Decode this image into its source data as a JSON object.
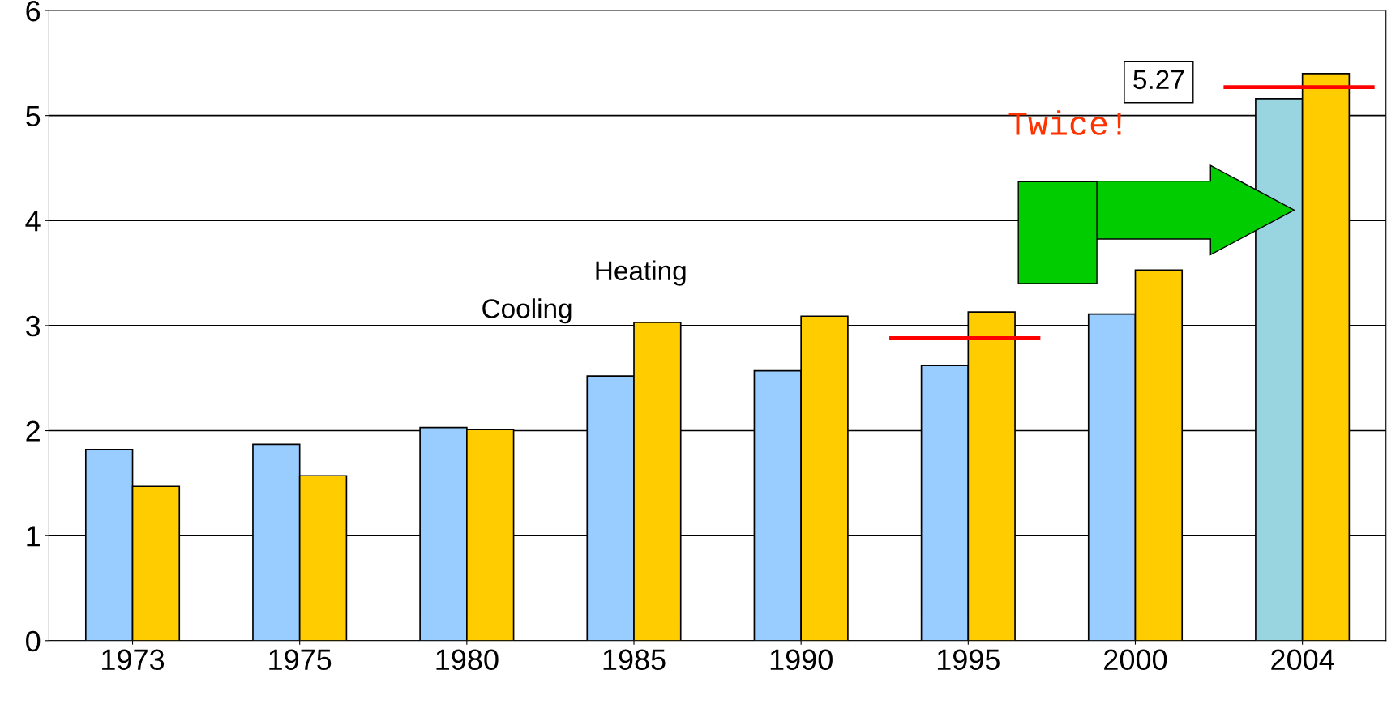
{
  "chart_data": {
    "type": "bar",
    "categories": [
      "1973",
      "1975",
      "1980",
      "1985",
      "1990",
      "1995",
      "2000",
      "2004"
    ],
    "series": [
      {
        "name": "Cooling",
        "color": "#99ccff",
        "colors": [
          "#99ccff",
          "#99ccff",
          "#99ccff",
          "#99ccff",
          "#99ccff",
          "#99ccff",
          "#99ccff",
          "#99d5e0"
        ],
        "values": [
          1.82,
          1.87,
          2.03,
          2.52,
          2.57,
          2.62,
          3.11,
          5.16
        ]
      },
      {
        "name": "Heating",
        "color": "#ffcc00",
        "values": [
          1.47,
          1.57,
          2.01,
          3.03,
          3.09,
          3.13,
          3.53,
          5.4
        ]
      }
    ],
    "ref_lines": [
      {
        "axis": "y",
        "value": 2.88,
        "color": "#ff0000"
      },
      {
        "axis": "y",
        "value": 5.27,
        "label": "5.27",
        "color": "#ff0000"
      }
    ],
    "ylim": [
      0,
      6
    ],
    "yticks": [
      0,
      1,
      2,
      3,
      4,
      5,
      6
    ],
    "grid": "y",
    "annotations": [
      "Twice!"
    ]
  }
}
